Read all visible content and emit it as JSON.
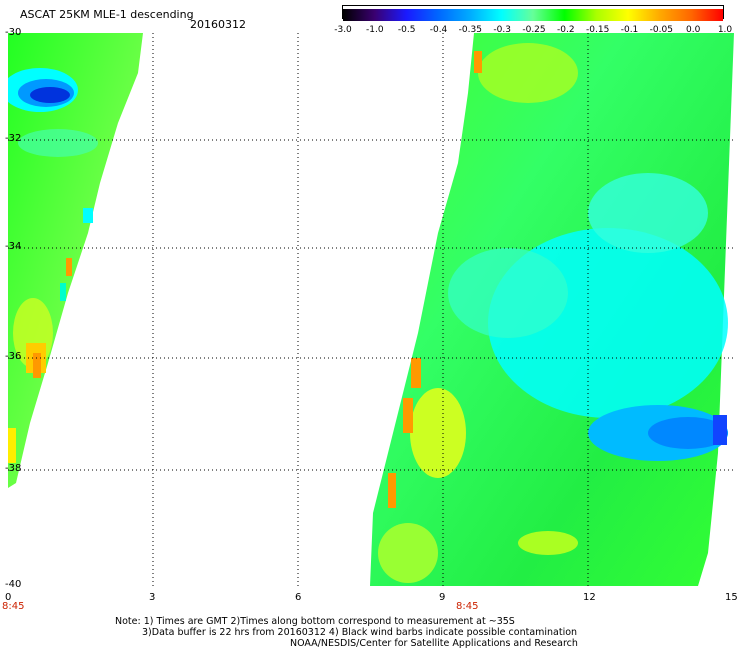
{
  "header": {
    "title": "ASCAT 25KM MLE-1 descending",
    "date": "20160312"
  },
  "colorbar": {
    "labels": [
      "-3.0",
      "-1.0",
      "-0.5",
      "-0.4",
      "-0.35",
      "-0.3",
      "-0.25",
      "-0.2",
      "-0.15",
      "-0.1",
      "-0.05",
      "0.0",
      "1.0"
    ],
    "colors": [
      "#000000",
      "#3a0070",
      "#1a1aff",
      "#0066ff",
      "#00aaff",
      "#00ffff",
      "#66ff99",
      "#00ff00",
      "#aaff00",
      "#ffff00",
      "#ffaa00",
      "#ff6600",
      "#ff0000"
    ]
  },
  "axes": {
    "y_ticks": [
      "-30",
      "-32",
      "-34",
      "-36",
      "-38",
      "-40"
    ],
    "x_ticks": [
      "0",
      "3",
      "6",
      "9",
      "12",
      "15"
    ],
    "time_labels": [
      "8:45",
      "8:45"
    ]
  },
  "notes": [
    "Note: 1) Times are GMT 2)Times along bottom correspond to measurement at ~35S",
    "3)Data buffer is 22 hrs from 20160312 4) Black wind barbs indicate possible contamination",
    "NOAA/NESDIS/Center for Satellite Applications and Research"
  ]
}
